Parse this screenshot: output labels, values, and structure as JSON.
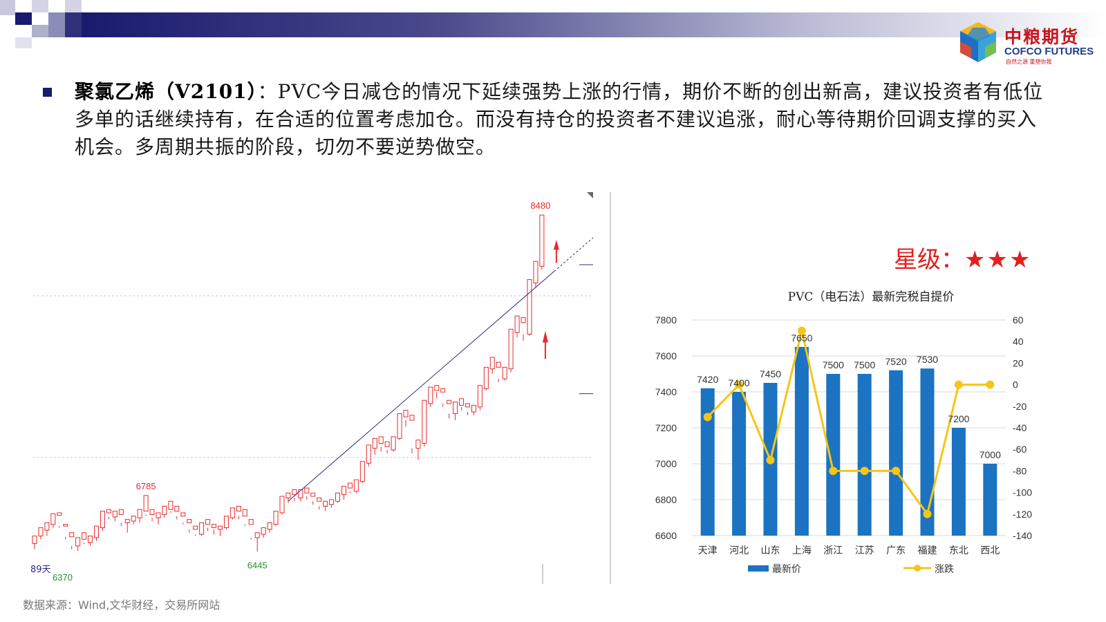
{
  "bullet": {
    "title": "聚氯乙烯（V2101）",
    "body": "：PVC今日减仓的情况下延续强势上涨的行情，期价不断的创出新高，建议投资者有低位多单的话继续持有，在合适的位置考虑加仓。而没有持仓的投资者不建议追涨，耐心等待期价回调支撑的买入机会。多周期共振的阶段，切勿不要逆势做空。"
  },
  "logo": {
    "cn": "中粮期货",
    "en": "COFCO FUTURES",
    "slogan": "自然之源 重塑你我"
  },
  "rating": {
    "label": "星级：",
    "stars": "★★★"
  },
  "source": "数据来源：Wind,文华财经，交易所网站",
  "colors": {
    "up": "#e8292a",
    "down": "#1f8f2a",
    "bar": "#1b73c1",
    "line": "#f5c518",
    "banner_dark": "#1a1a6e"
  },
  "chart_data": [
    {
      "type": "candlestick",
      "annotations": {
        "high_label": "8480",
        "peak_label": "6785",
        "low_label": "6445",
        "corner_label": "6370",
        "period_label": "89天"
      },
      "ylim": [
        6300,
        8560
      ],
      "candles": [
        [
          6495,
          6540,
          6460,
          6540
        ],
        [
          6540,
          6590,
          6520,
          6575
        ],
        [
          6575,
          6620,
          6540,
          6610
        ],
        [
          6610,
          6675,
          6590,
          6665
        ],
        [
          6665,
          6680,
          6590,
          6600
        ],
        [
          6600,
          6610,
          6520,
          6535
        ],
        [
          6535,
          6560,
          6460,
          6480
        ],
        [
          6480,
          6530,
          6450,
          6520
        ],
        [
          6520,
          6560,
          6490,
          6500
        ],
        [
          6500,
          6540,
          6480,
          6530
        ],
        [
          6530,
          6600,
          6510,
          6590
        ],
        [
          6590,
          6690,
          6570,
          6680
        ],
        [
          6680,
          6700,
          6640,
          6655
        ],
        [
          6655,
          6690,
          6630,
          6670
        ],
        [
          6670,
          6700,
          6600,
          6620
        ],
        [
          6620,
          6640,
          6560,
          6630
        ],
        [
          6630,
          6660,
          6610,
          6650
        ],
        [
          6650,
          6700,
          6620,
          6690
        ],
        [
          6690,
          6785,
          6660,
          6670
        ],
        [
          6670,
          6700,
          6630,
          6650
        ],
        [
          6650,
          6680,
          6610,
          6670
        ],
        [
          6670,
          6720,
          6650,
          6700
        ],
        [
          6700,
          6750,
          6680,
          6690
        ],
        [
          6690,
          6720,
          6640,
          6660
        ],
        [
          6660,
          6680,
          6610,
          6620
        ],
        [
          6620,
          6640,
          6560,
          6580
        ],
        [
          6580,
          6600,
          6540,
          6550
        ],
        [
          6550,
          6620,
          6540,
          6610
        ],
        [
          6610,
          6640,
          6570,
          6590
        ],
        [
          6590,
          6610,
          6550,
          6580
        ],
        [
          6580,
          6600,
          6540,
          6590
        ],
        [
          6590,
          6660,
          6580,
          6650
        ],
        [
          6650,
          6710,
          6640,
          6690
        ],
        [
          6690,
          6720,
          6640,
          6660
        ],
        [
          6660,
          6700,
          6600,
          6610
        ],
        [
          6610,
          6640,
          6520,
          6530
        ],
        [
          6530,
          6560,
          6445,
          6550
        ],
        [
          6550,
          6590,
          6530,
          6580
        ],
        [
          6580,
          6620,
          6560,
          6610
        ],
        [
          6610,
          6690,
          6600,
          6680
        ],
        [
          6680,
          6780,
          6670,
          6770
        ],
        [
          6770,
          6800,
          6740,
          6790
        ],
        [
          6790,
          6820,
          6750,
          6770
        ],
        [
          6770,
          6820,
          6750,
          6800
        ],
        [
          6800,
          6830,
          6760,
          6780
        ],
        [
          6780,
          6800,
          6730,
          6750
        ],
        [
          6750,
          6770,
          6700,
          6720
        ],
        [
          6720,
          6750,
          6690,
          6730
        ],
        [
          6730,
          6760,
          6710,
          6750
        ],
        [
          6750,
          6800,
          6740,
          6790
        ],
        [
          6790,
          6840,
          6760,
          6830
        ],
        [
          6830,
          6860,
          6800,
          6810
        ],
        [
          6810,
          6880,
          6800,
          6870
        ],
        [
          6870,
          6990,
          6860,
          6980
        ],
        [
          6980,
          7090,
          6960,
          7070
        ],
        [
          7070,
          7130,
          7030,
          7100
        ],
        [
          7100,
          7140,
          7050,
          7080
        ],
        [
          7080,
          7110,
          7040,
          7060
        ],
        [
          7060,
          7140,
          7050,
          7130
        ],
        [
          7130,
          7280,
          7120,
          7260
        ],
        [
          7260,
          7300,
          7200,
          7240
        ],
        [
          7240,
          7270,
          7040,
          7070
        ],
        [
          7070,
          7120,
          7000,
          7100
        ],
        [
          7100,
          7360,
          7080,
          7340
        ],
        [
          7340,
          7440,
          7320,
          7420
        ],
        [
          7420,
          7450,
          7370,
          7410
        ],
        [
          7410,
          7430,
          7320,
          7340
        ],
        [
          7340,
          7360,
          7250,
          7280
        ],
        [
          7280,
          7350,
          7240,
          7330
        ],
        [
          7330,
          7370,
          7300,
          7320
        ],
        [
          7320,
          7340,
          7270,
          7290
        ],
        [
          7290,
          7330,
          7270,
          7320
        ],
        [
          7320,
          7450,
          7300,
          7430
        ],
        [
          7430,
          7560,
          7420,
          7550
        ],
        [
          7550,
          7620,
          7520,
          7560
        ],
        [
          7560,
          7590,
          7470,
          7490
        ],
        [
          7490,
          7560,
          7480,
          7550
        ],
        [
          7550,
          7790,
          7530,
          7770
        ],
        [
          7770,
          7870,
          7740,
          7830
        ],
        [
          7830,
          7860,
          7720,
          7760
        ],
        [
          7760,
          8090,
          7750,
          8070
        ],
        [
          8070,
          8200,
          8040,
          8170
        ],
        [
          8170,
          8480,
          8150,
          8380
        ]
      ],
      "trendline": {
        "from_index": 41,
        "from_value": 6750,
        "to_index": 84,
        "to_value": 8140
      },
      "hlines": [
        8180,
        7400
      ]
    },
    {
      "type": "bar+line",
      "title": "PVC（电石法）最新完税自提价",
      "categories": [
        "天津",
        "河北",
        "山东",
        "上海",
        "浙江",
        "江苏",
        "广东",
        "福建",
        "东北",
        "西北"
      ],
      "series": [
        {
          "name": "最新价",
          "kind": "bar",
          "axis": "left",
          "values": [
            7420,
            7400,
            7450,
            7650,
            7500,
            7500,
            7520,
            7530,
            7200,
            7000
          ]
        },
        {
          "name": "涨跌",
          "kind": "line",
          "axis": "right",
          "values": [
            -30,
            0,
            -70,
            50,
            -80,
            -80,
            -80,
            -120,
            0,
            0
          ]
        }
      ],
      "left_axis": {
        "ylim": [
          6600,
          7800
        ],
        "ticks": [
          6600,
          6800,
          7000,
          7200,
          7400,
          7600,
          7800
        ]
      },
      "right_axis": {
        "ylim": [
          -140,
          60
        ],
        "ticks": [
          -140,
          -120,
          -100,
          -80,
          -60,
          -40,
          -20,
          0,
          20,
          40,
          60
        ]
      },
      "legend_position": "bottom"
    }
  ]
}
